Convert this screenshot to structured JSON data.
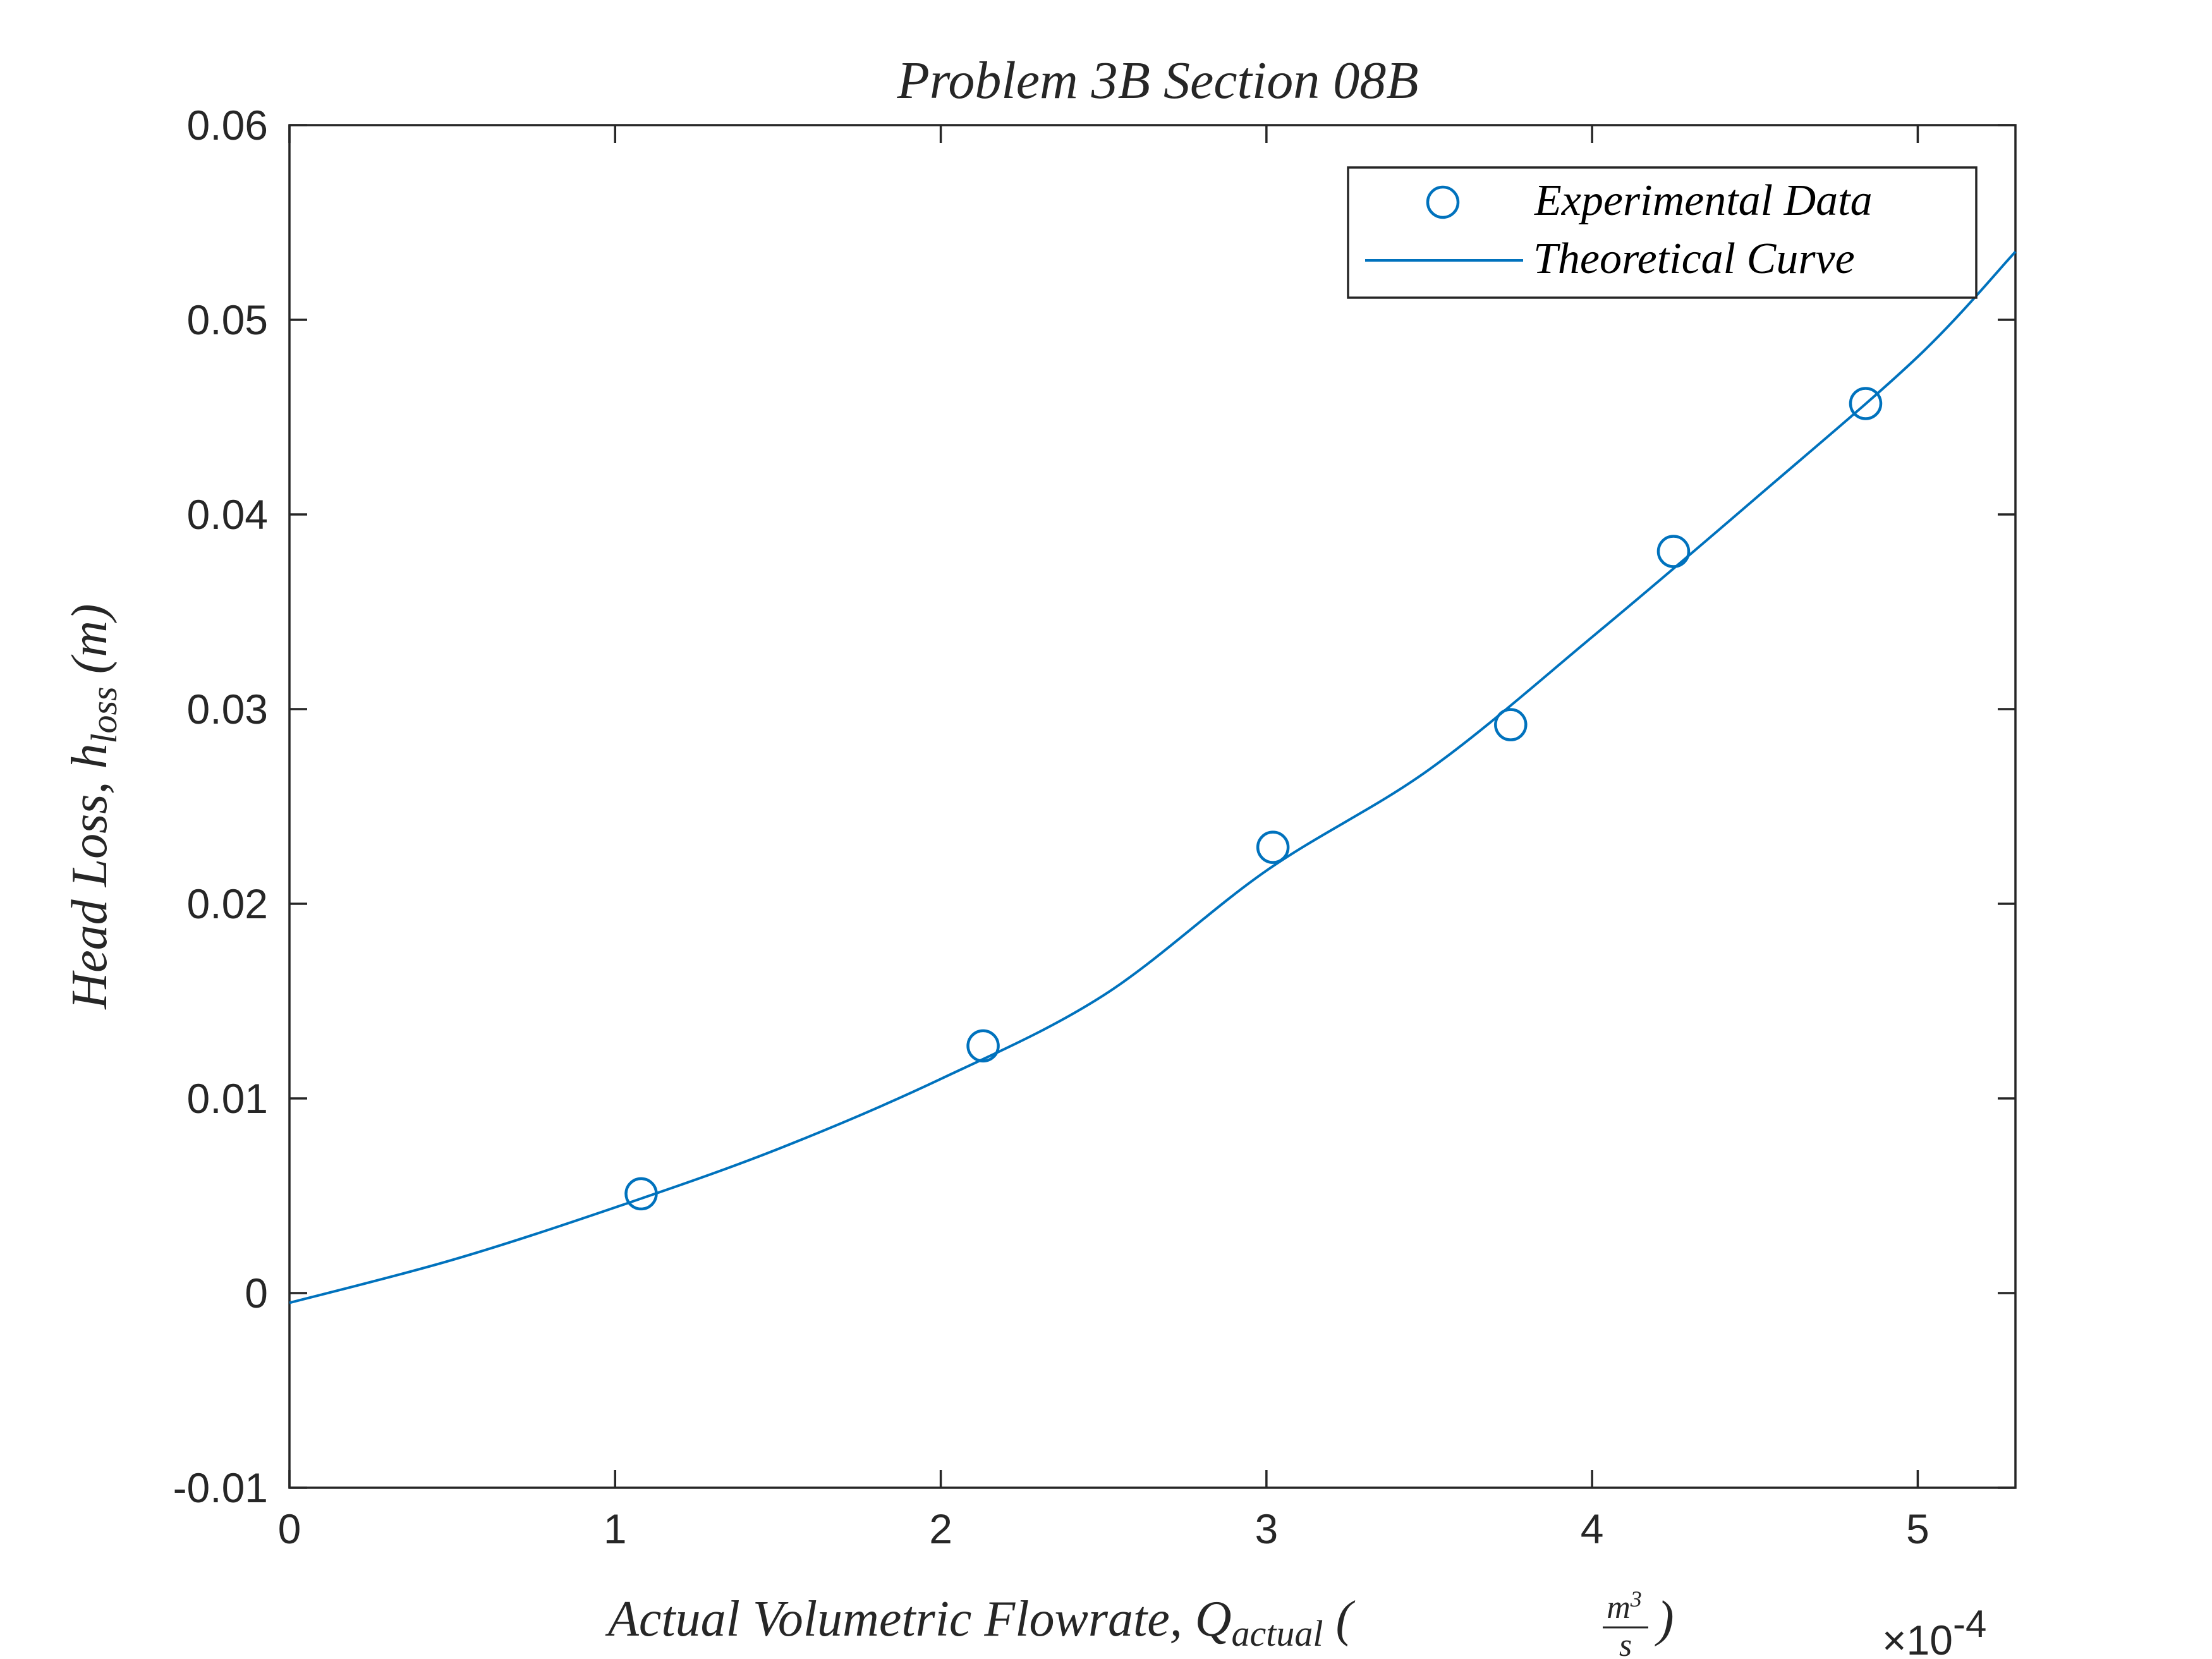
{
  "chart_data": {
    "type": "scatter",
    "title": "Problem 3B Section 08B",
    "xlabel": {
      "prefix": "Actual Volumetric Flowrate, Q",
      "subscript": "actual",
      "unit_open": " (",
      "unit_num": "m",
      "unit_num_sup": "3",
      "unit_den": "s",
      "unit_close": ")"
    },
    "ylabel": {
      "prefix": "Head Loss, h",
      "subscript": "loss",
      "suffix": " (m)"
    },
    "xlim": [
      0,
      0.00053
    ],
    "ylim": [
      -0.01,
      0.06
    ],
    "x_ticks": [
      0,
      0.0001,
      0.0002,
      0.0003,
      0.0004,
      0.0005
    ],
    "x_tick_labels": [
      "0",
      "1",
      "2",
      "3",
      "4",
      "5"
    ],
    "x_exponent": {
      "base": "×10",
      "power": "-4"
    },
    "y_ticks": [
      -0.01,
      0,
      0.01,
      0.02,
      0.03,
      0.04,
      0.05,
      0.06
    ],
    "y_tick_labels": [
      "-0.01",
      "0",
      "0.01",
      "0.02",
      "0.03",
      "0.04",
      "0.05",
      "0.06"
    ],
    "grid": false,
    "legend_position": "top-right",
    "series": [
      {
        "name": "Experimental Data",
        "kind": "markers",
        "marker": "circle",
        "color": "#0072BD",
        "x": [
          0.000108,
          0.000213,
          0.000302,
          0.000375,
          0.000425,
          0.000484
        ],
        "y": [
          0.0051,
          0.0127,
          0.0229,
          0.0292,
          0.0381,
          0.0457
        ]
      },
      {
        "name": "Theoretical Curve",
        "kind": "line",
        "color": "#0072BD",
        "x": [
          0,
          5e-05,
          0.0001,
          0.00015,
          0.0002,
          0.00025,
          0.0003,
          0.00035,
          0.0004,
          0.00045,
          0.0005,
          0.00053
        ],
        "y": [
          -0.0005,
          0.0017,
          0.0044,
          0.0074,
          0.011,
          0.0153,
          0.0217,
          0.0269,
          0.0337,
          0.0408,
          0.0481,
          0.0535
        ]
      }
    ]
  }
}
